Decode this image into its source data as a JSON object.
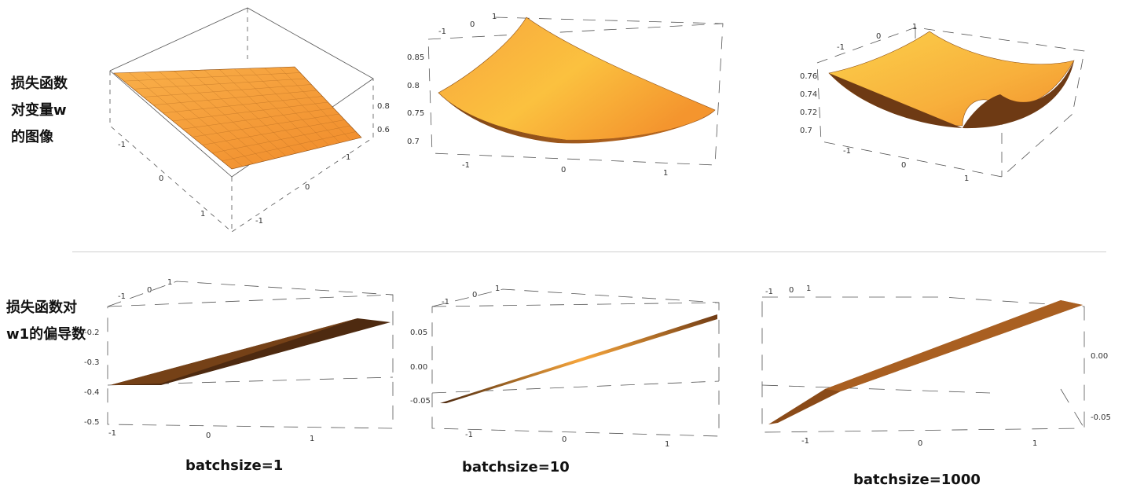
{
  "row_labels": {
    "top": [
      "损失函数",
      "对变量w",
      "的图像"
    ],
    "bottom": [
      "损失函数对",
      "w1的偏导数"
    ]
  },
  "captions": [
    "batchsize=1",
    "batchsize=10",
    "batchsize=1000"
  ],
  "colors": {
    "surface_light": "#ffd24a",
    "surface_mid": "#f7982f",
    "surface_dark": "#5a3212",
    "box": "#444444",
    "divider": "#cfcfcf"
  },
  "chart_data": [
    {
      "type": "surface3d",
      "title": "",
      "x_range": [
        -1,
        1
      ],
      "y_range": [
        -1,
        1
      ],
      "z_ticks": [
        0.6,
        0.8
      ],
      "x_ticks": [
        -1,
        0,
        1
      ],
      "y_ticks": [
        -1,
        0,
        1
      ],
      "shape": "tilted plane",
      "z_at_corners": {
        "x-1_y-1": 0.62,
        "x1_y-1": 0.92,
        "x-1_y1": 0.52,
        "x1_y1": 0.78
      }
    },
    {
      "type": "surface3d",
      "title": "",
      "x_range": [
        -1,
        1
      ],
      "y_range": [
        -1,
        1
      ],
      "z_ticks": [
        0.7,
        0.75,
        0.8,
        0.85
      ],
      "x_ticks": [
        -1,
        0,
        1
      ],
      "y_ticks": [
        -1,
        0,
        1
      ],
      "shape": "shallow bowl",
      "z_min": 0.7,
      "z_max": 0.87
    },
    {
      "type": "surface3d",
      "title": "",
      "x_range": [
        -1,
        1
      ],
      "y_range": [
        -1,
        1
      ],
      "z_ticks": [
        0.7,
        0.72,
        0.74,
        0.76
      ],
      "x_ticks": [
        -1,
        0,
        1
      ],
      "y_ticks": [
        -1,
        0,
        1
      ],
      "shape": "paraboloid bowl",
      "z_min": 0.7,
      "z_max": 0.77
    },
    {
      "type": "surface3d",
      "title": "",
      "x_range": [
        -1,
        1
      ],
      "y_range": [
        -1,
        1
      ],
      "z_ticks": [
        -0.5,
        -0.4,
        -0.3,
        -0.2
      ],
      "x_ticks": [
        -1,
        0,
        1
      ],
      "y_ticks": [
        -1,
        0,
        1
      ],
      "shape": "thin plane"
    },
    {
      "type": "surface3d",
      "title": "",
      "x_range": [
        -1,
        1
      ],
      "y_range": [
        -1,
        1
      ],
      "z_ticks": [
        -0.05,
        0.0,
        0.05
      ],
      "x_ticks": [
        -1,
        0,
        1
      ],
      "y_ticks": [
        -1,
        0,
        1
      ],
      "shape": "thin plane"
    },
    {
      "type": "surface3d",
      "title": "",
      "x_range": [
        -1,
        1
      ],
      "y_range": [
        -1,
        1
      ],
      "z_ticks": [
        -0.05,
        0.0
      ],
      "x_ticks": [
        -1,
        0,
        1
      ],
      "y_ticks": [
        -1,
        0,
        1
      ],
      "shape": "thin plane"
    }
  ]
}
